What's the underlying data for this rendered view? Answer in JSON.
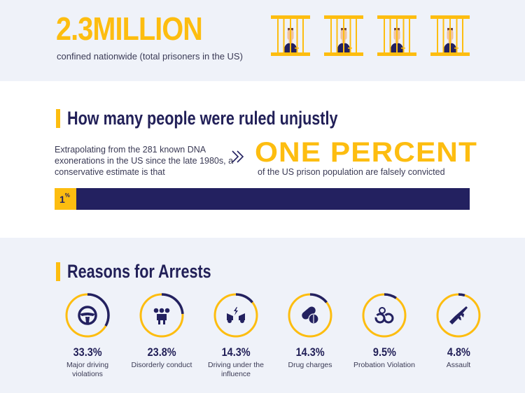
{
  "colors": {
    "accent": "#fdbd10",
    "navy": "#232160",
    "bg_light": "#eff2f9",
    "bg_white": "#ffffff",
    "text": "#3a3a55"
  },
  "header": {
    "big_number": "2.3MILLION",
    "caption": "confined nationwide (total prisoners in the US)",
    "icons": [
      "prisoner-icon",
      "prisoner-icon",
      "prisoner-icon",
      "prisoner-icon"
    ]
  },
  "section_unjust": {
    "title": "How many people were ruled unjustly",
    "paragraph": "Extrapolating from the 281 known DNA exonerations in the US since the late 1980s, a conservative estimate is that",
    "highlight": "ONE PERCENT",
    "highlight_caption": "of the US prison population are falsely convicted",
    "bar": {
      "value": "1",
      "unit": "%",
      "percent": 1
    }
  },
  "section_reasons": {
    "title": "Reasons for Arrests",
    "items": [
      {
        "icon": "steering-wheel-icon",
        "percent": "33.3%",
        "value": 33.3,
        "label": "Major driving violations"
      },
      {
        "icon": "group-people-icon",
        "percent": "23.8%",
        "value": 23.8,
        "label": "Disorderly conduct"
      },
      {
        "icon": "car-crash-icon",
        "percent": "14.3%",
        "value": 14.3,
        "label": "Driving under the influence"
      },
      {
        "icon": "pills-icon",
        "percent": "14.3%",
        "value": 14.3,
        "label": "Drug charges"
      },
      {
        "icon": "handcuffs-icon",
        "percent": "9.5%",
        "value": 9.5,
        "label": "Probation Violation"
      },
      {
        "icon": "rifle-icon",
        "percent": "4.8%",
        "value": 4.8,
        "label": "Assault"
      }
    ]
  }
}
